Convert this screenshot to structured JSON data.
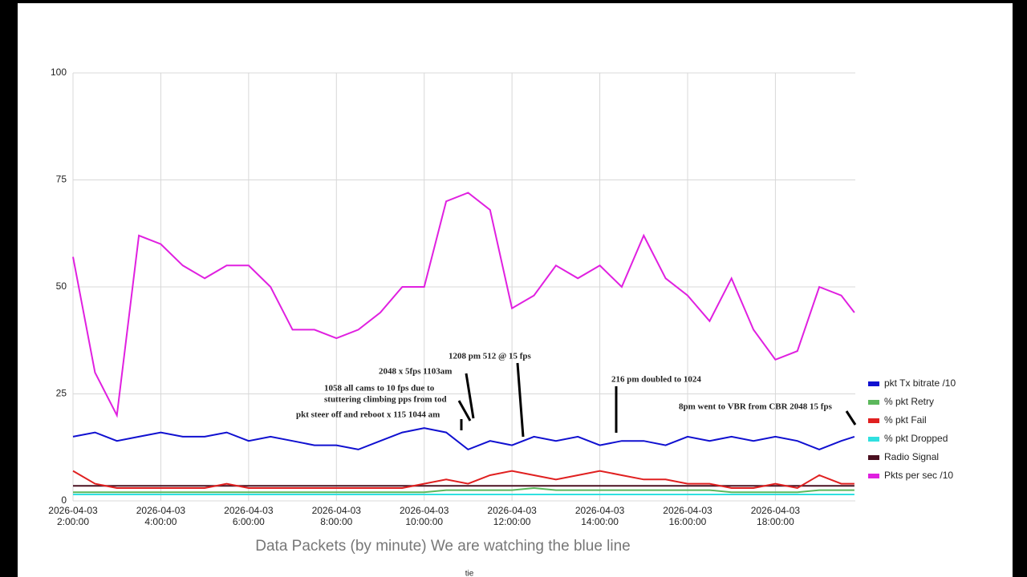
{
  "chart_data": {
    "type": "line",
    "title": "Data Packets  (by minute) We are watching the blue line",
    "footnote": "tie",
    "x": [
      2,
      2.5,
      3,
      3.5,
      4,
      4.5,
      5,
      5.5,
      6,
      6.5,
      7,
      7.5,
      8,
      8.5,
      9,
      9.5,
      10,
      10.5,
      11,
      11.5,
      12,
      12.5,
      13,
      13.5,
      14,
      14.5,
      15,
      15.5,
      16,
      16.5,
      17,
      17.5,
      18,
      18.5,
      19,
      19.5,
      19.8
    ],
    "xlim": [
      2,
      19.82
    ],
    "xticks": [
      {
        "value": 2,
        "label": "2026-04-03\n2:00:00"
      },
      {
        "value": 4,
        "label": "2026-04-03\n4:00:00"
      },
      {
        "value": 6,
        "label": "2026-04-03\n6:00:00"
      },
      {
        "value": 8,
        "label": "2026-04-03\n8:00:00"
      },
      {
        "value": 10,
        "label": "2026-04-03\n10:00:00"
      },
      {
        "value": 12,
        "label": "2026-04-03\n12:00:00"
      },
      {
        "value": 14,
        "label": "2026-04-03\n14:00:00"
      },
      {
        "value": 16,
        "label": "2026-04-03\n16:00:00"
      },
      {
        "value": 18,
        "label": "2026-04-03\n18:00:00"
      }
    ],
    "ylim": [
      0,
      100
    ],
    "yticks": [
      0,
      25,
      50,
      75,
      100
    ],
    "grid": true,
    "legend": "right",
    "series": [
      {
        "name": "pkt Tx bitrate /10",
        "color": "#1010d0",
        "values": [
          15,
          16,
          14,
          15,
          16,
          15,
          15,
          16,
          14,
          15,
          14,
          13,
          13,
          12,
          14,
          16,
          17,
          16,
          12,
          14,
          13,
          15,
          14,
          15,
          13,
          14,
          14,
          13,
          15,
          14,
          15,
          14,
          15,
          14,
          12,
          14,
          15
        ]
      },
      {
        "name": "% pkt Retry",
        "color": "#5cb85c",
        "values": [
          2,
          2,
          2,
          2,
          2,
          2,
          2,
          2,
          2,
          2,
          2,
          2,
          2,
          2,
          2,
          2,
          2,
          2.5,
          2.5,
          2.5,
          2.5,
          3,
          2.5,
          2.5,
          2.5,
          2.5,
          2.5,
          2.5,
          2.5,
          2.5,
          2,
          2,
          2,
          2,
          2.5,
          2.5,
          2.5
        ]
      },
      {
        "name": "% pkt Fail",
        "color": "#e02020",
        "values": [
          7,
          4,
          3,
          3,
          3,
          3,
          3,
          4,
          3,
          3,
          3,
          3,
          3,
          3,
          3,
          3,
          4,
          5,
          4,
          6,
          7,
          6,
          5,
          6,
          7,
          6,
          5,
          5,
          4,
          4,
          3,
          3,
          4,
          3,
          6,
          4,
          4
        ]
      },
      {
        "name": "% pkt Dropped",
        "color": "#30e0e0",
        "values": [
          1.5,
          1.5,
          1.5,
          1.5,
          1.5,
          1.5,
          1.5,
          1.5,
          1.5,
          1.5,
          1.5,
          1.5,
          1.5,
          1.5,
          1.5,
          1.5,
          1.5,
          1.5,
          1.5,
          1.5,
          1.5,
          1.5,
          1.5,
          1.5,
          1.5,
          1.5,
          1.5,
          1.5,
          1.5,
          1.5,
          1.5,
          1.5,
          1.5,
          1.5,
          1.5,
          1.5,
          1.5
        ]
      },
      {
        "name": "Radio Signal",
        "color": "#4a1020",
        "values": [
          3.5,
          3.5,
          3.5,
          3.5,
          3.5,
          3.5,
          3.5,
          3.5,
          3.5,
          3.5,
          3.5,
          3.5,
          3.5,
          3.5,
          3.5,
          3.5,
          3.5,
          3.5,
          3.5,
          3.5,
          3.5,
          3.5,
          3.5,
          3.5,
          3.5,
          3.5,
          3.5,
          3.5,
          3.5,
          3.5,
          3.5,
          3.5,
          3.5,
          3.5,
          3.5,
          3.5,
          3.5
        ]
      },
      {
        "name": "Pkts per sec /10",
        "color": "#e020e0",
        "values": [
          57,
          30,
          20,
          62,
          60,
          55,
          52,
          55,
          55,
          50,
          40,
          40,
          38,
          40,
          44,
          50,
          50,
          70,
          72,
          68,
          45,
          48,
          55,
          52,
          55,
          50,
          62,
          52,
          48,
          42,
          52,
          40,
          33,
          35,
          50,
          48,
          44
        ]
      }
    ],
    "annotations": [
      "1208 pm 512 @ 15 fps",
      "2048 x 5fps 1103am",
      "1058 all cams to 10 fps due to",
      "stuttering climbing pps from tod",
      "pkt steer off and reboot x 115 1044 am",
      "216 pm doubled to 1024",
      "8pm went to VBR from CBR 2048 15 fps"
    ]
  }
}
